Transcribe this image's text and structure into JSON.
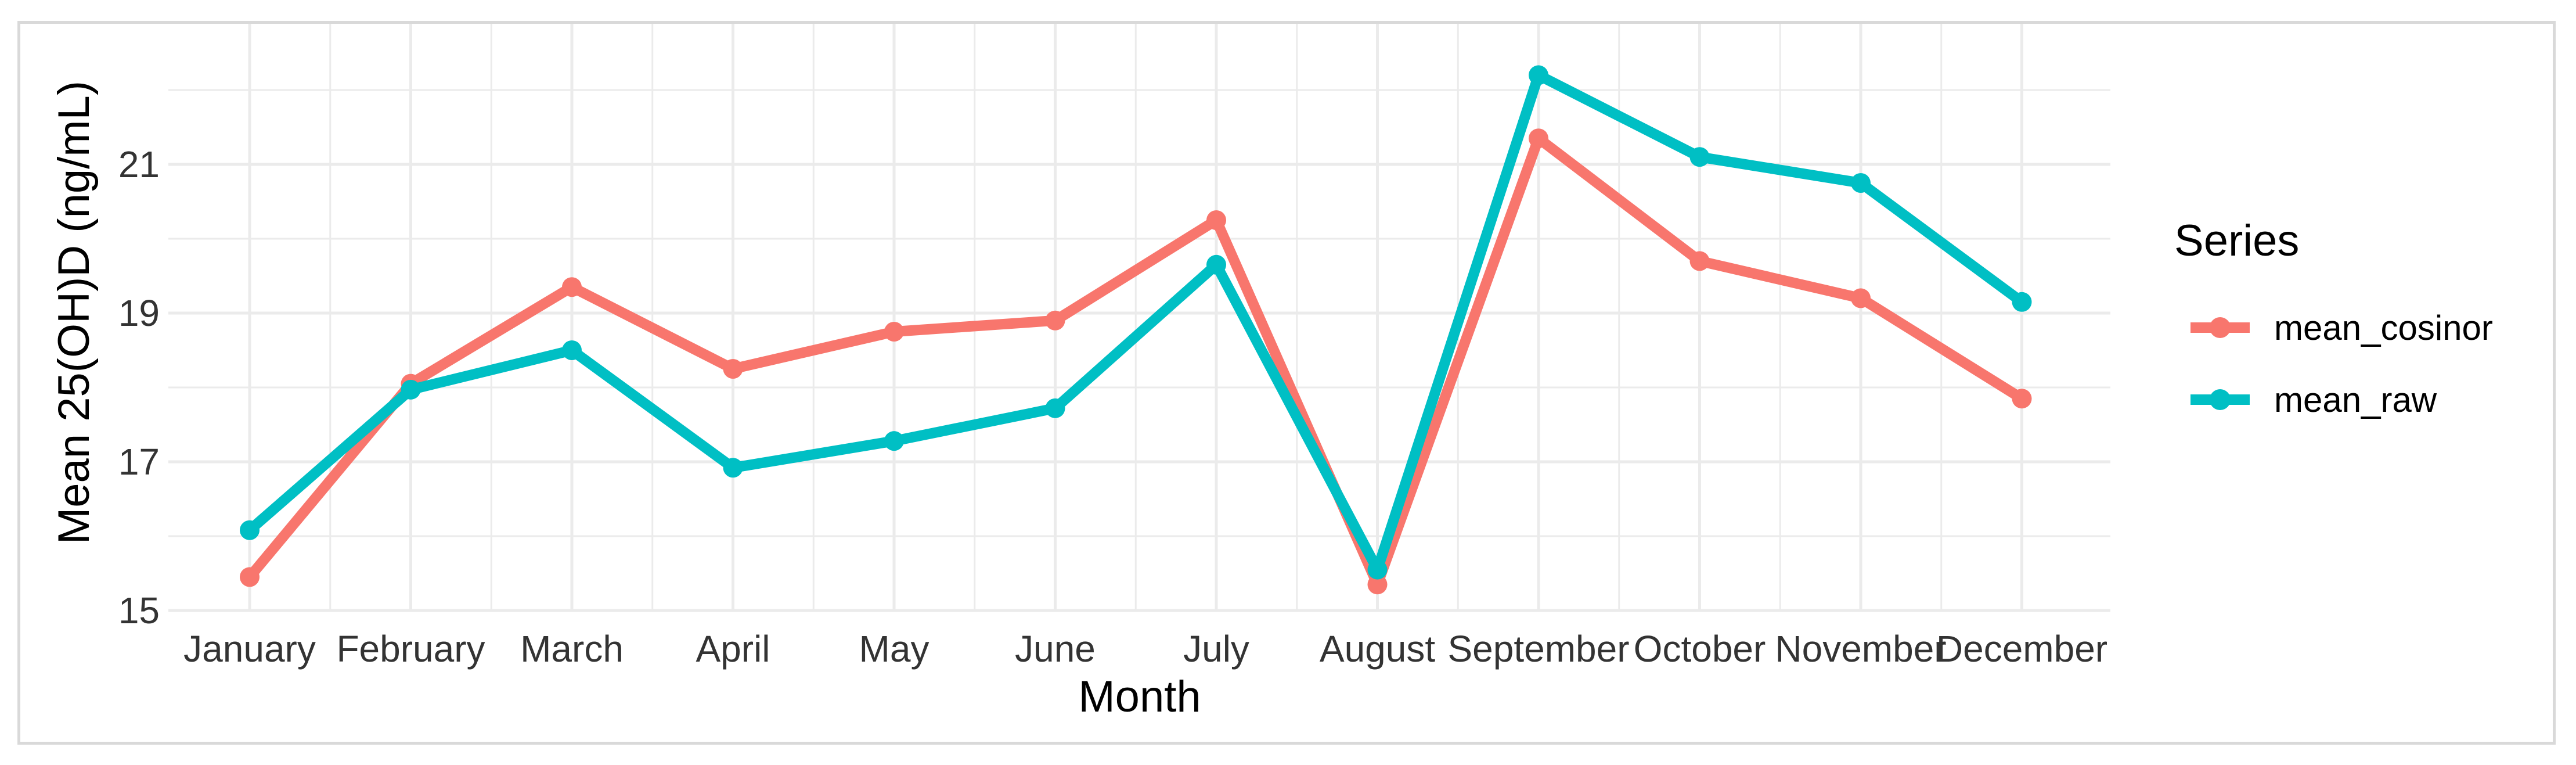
{
  "chart_data": {
    "type": "line",
    "xlabel": "Month",
    "ylabel": "Mean 25(OH)D (ng/mL)",
    "categories": [
      "January",
      "February",
      "March",
      "April",
      "May",
      "June",
      "July",
      "August",
      "September",
      "October",
      "November",
      "December"
    ],
    "y_ticks": [
      15,
      17,
      19,
      21
    ],
    "y_tick_labels": [
      "15",
      "17",
      "19",
      "21"
    ],
    "ylim": [
      15,
      22.6
    ],
    "grid": true,
    "legend": {
      "title": "Series",
      "position": "right"
    },
    "series": [
      {
        "name": "mean_cosinor",
        "color": "#F8766D",
        "values": [
          15.45,
          18.05,
          19.35,
          18.25,
          18.75,
          18.9,
          20.25,
          15.35,
          21.35,
          19.7,
          19.2,
          17.85
        ]
      },
      {
        "name": "mean_raw",
        "color": "#00BFC4",
        "values": [
          16.08,
          17.97,
          18.5,
          16.92,
          17.28,
          17.72,
          19.65,
          15.55,
          22.2,
          21.1,
          20.75,
          19.15
        ]
      }
    ]
  }
}
